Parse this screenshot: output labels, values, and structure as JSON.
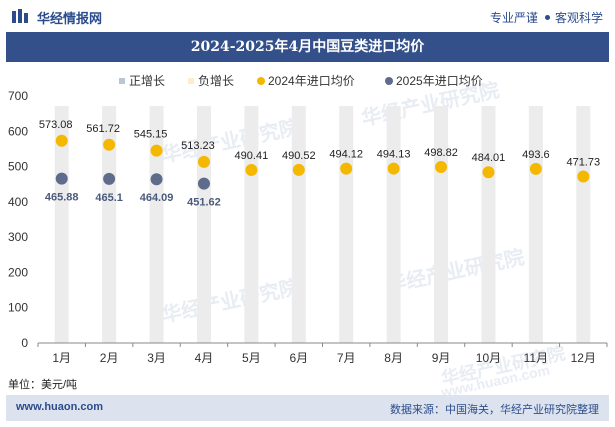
{
  "header": {
    "brand": "华经情报网",
    "tag_pro": "专业严谨",
    "tag_sci": "客观科学"
  },
  "footer": {
    "unit": "单位：美元/吨",
    "url": "www.huaon.com",
    "source": "数据来源：中国海关，华经产业研究院整理"
  },
  "watermark": {
    "text": "华经产业研究院",
    "url": "www.huaon.com"
  },
  "colors": {
    "brand": "#33508b",
    "series_2024": "#f5b800",
    "series_2025": "#5e6b8a",
    "pos_bar": "#b9c6d6",
    "neg_bar": "#fdeec8",
    "band": "#ececec"
  },
  "chart_data": {
    "type": "scatter",
    "title": "2024-2025年4月中国豆类进口均价",
    "categories": [
      "1月",
      "2月",
      "3月",
      "4月",
      "5月",
      "6月",
      "7月",
      "8月",
      "9月",
      "10月",
      "11月",
      "12月"
    ],
    "ylim": [
      0,
      700
    ],
    "yticks": [
      0,
      100,
      200,
      300,
      400,
      500,
      600,
      700
    ],
    "legend_position": "top",
    "legend": [
      "正增长",
      "负增长",
      "2024年进口均价",
      "2025年进口均价"
    ],
    "series": [
      {
        "name": "2024年进口均价",
        "values": [
          573.08,
          561.72,
          545.15,
          513.23,
          490.41,
          490.52,
          494.12,
          494.13,
          498.82,
          484.01,
          493.6,
          471.73
        ]
      },
      {
        "name": "2025年进口均价",
        "values": [
          465.88,
          465.1,
          464.09,
          451.62
        ]
      }
    ]
  }
}
